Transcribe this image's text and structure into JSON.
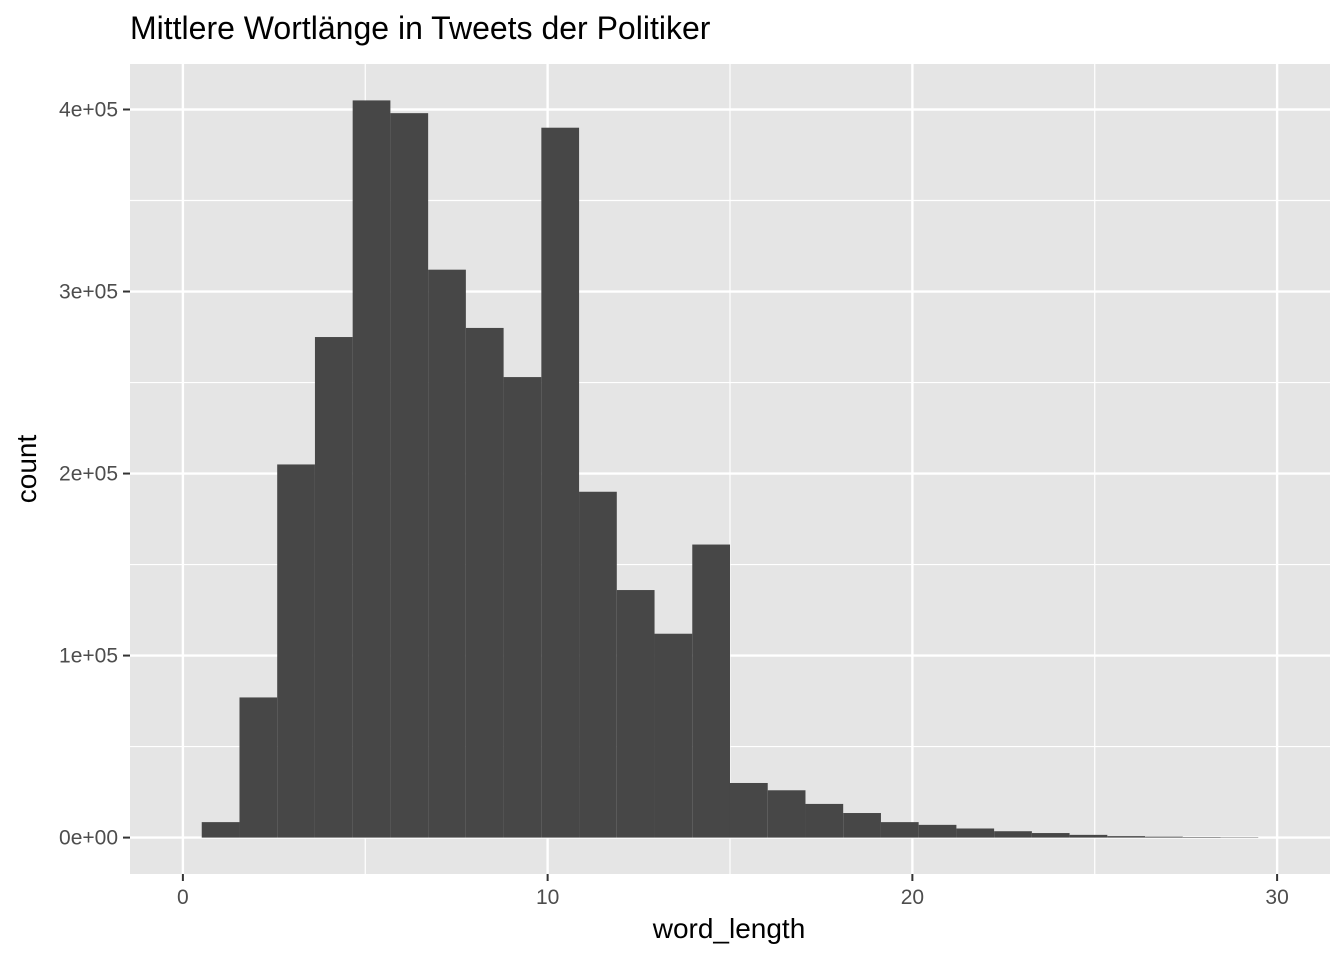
{
  "chart_data": {
    "type": "bar",
    "title": "Mittlere Wortlänge in Tweets der Politiker",
    "xlabel": "word_length",
    "ylabel": "count",
    "xlim": [
      -1.45,
      31.45
    ],
    "ylim": [
      -20000,
      425000
    ],
    "x_ticks": [
      0,
      10,
      20,
      30
    ],
    "x_tick_labels": [
      "0",
      "10",
      "20",
      "30"
    ],
    "y_ticks": [
      0,
      100000,
      200000,
      300000,
      400000
    ],
    "y_tick_labels": [
      "0e+00",
      "1e+05",
      "2e+05",
      "3e+05",
      "4e+05"
    ],
    "bin_width": 1.0345,
    "bin_centers": [
      1.034,
      2.069,
      3.103,
      4.138,
      5.172,
      6.207,
      7.241,
      8.276,
      9.31,
      10.345,
      11.379,
      12.414,
      13.448,
      14.483,
      15.517,
      16.552,
      17.586,
      18.621,
      19.655,
      20.69,
      21.724,
      22.759,
      23.793,
      24.828,
      25.862,
      26.897,
      27.931,
      28.966
    ],
    "values": [
      8500,
      77000,
      205000,
      275000,
      405000,
      398000,
      312000,
      280000,
      253000,
      390000,
      190000,
      136000,
      112000,
      161000,
      30000,
      26000,
      18500,
      13500,
      8500,
      7000,
      5000,
      3500,
      2500,
      1500,
      800,
      500,
      300,
      200
    ],
    "grid": true,
    "panel_background": "#e5e5e5",
    "grid_color": "#ffffff",
    "bar_color": "#474747"
  }
}
